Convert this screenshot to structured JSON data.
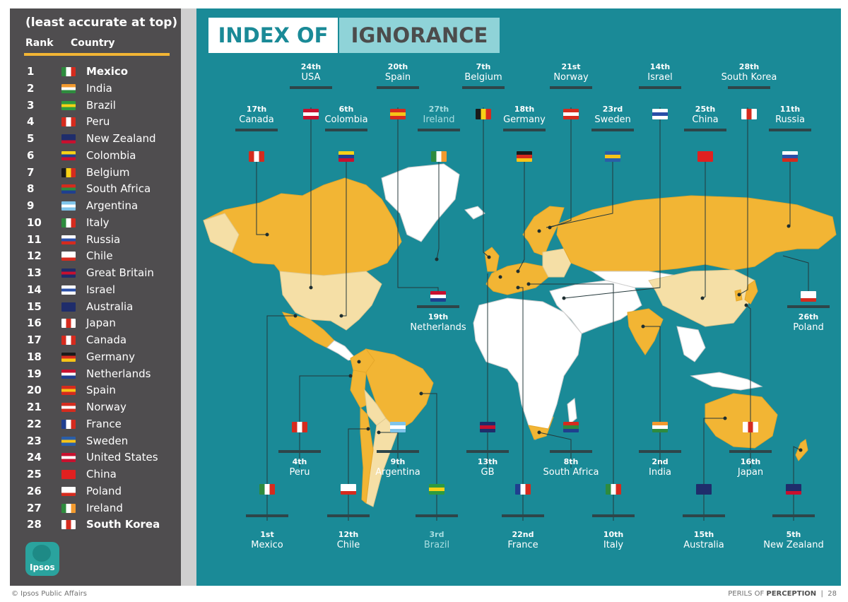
{
  "sidebar": {
    "title": "(least accurate at top)",
    "rank_header": "Rank",
    "country_header": "Country",
    "rows": [
      {
        "rank": "1",
        "country": "Mexico",
        "bold": true,
        "flag": [
          "#2e8b3e",
          "#ffffff",
          "#d52b1e"
        ],
        "flag_dir": "v"
      },
      {
        "rank": "2",
        "country": "India",
        "flag": [
          "#f39a2e",
          "#ffffff",
          "#2e8b3e"
        ],
        "flag_dir": "h"
      },
      {
        "rank": "3",
        "country": "Brazil",
        "flag": [
          "#2e9b3e",
          "#f7d117",
          "#2e9b3e"
        ],
        "flag_dir": "h"
      },
      {
        "rank": "4",
        "country": "Peru",
        "flag": [
          "#d52b1e",
          "#ffffff",
          "#d52b1e"
        ],
        "flag_dir": "v"
      },
      {
        "rank": "5",
        "country": "New Zealand",
        "flag": [
          "#1f2d6b",
          "#1f2d6b",
          "#c8102e"
        ],
        "flag_dir": "h"
      },
      {
        "rank": "6",
        "country": "Colombia",
        "flag": [
          "#f7d117",
          "#1f3f8f",
          "#c8102e"
        ],
        "flag_dir": "h"
      },
      {
        "rank": "7",
        "country": "Belgium",
        "flag": [
          "#1a1a1a",
          "#f7d117",
          "#d52b1e"
        ],
        "flag_dir": "v"
      },
      {
        "rank": "8",
        "country": "South Africa",
        "flag": [
          "#d52b1e",
          "#2e8b3e",
          "#1f3f8f"
        ],
        "flag_dir": "h"
      },
      {
        "rank": "9",
        "country": "Argentina",
        "flag": [
          "#7fc4ea",
          "#ffffff",
          "#7fc4ea"
        ],
        "flag_dir": "h"
      },
      {
        "rank": "10",
        "country": "Italy",
        "flag": [
          "#2e8b3e",
          "#ffffff",
          "#d52b1e"
        ],
        "flag_dir": "v"
      },
      {
        "rank": "11",
        "country": "Russia",
        "flag": [
          "#ffffff",
          "#2a4fa8",
          "#d52b1e"
        ],
        "flag_dir": "h"
      },
      {
        "rank": "12",
        "country": "Chile",
        "flag": [
          "#ffffff",
          "#ffffff",
          "#d52b1e"
        ],
        "flag_dir": "h"
      },
      {
        "rank": "13",
        "country": "Great Britain",
        "flag": [
          "#1f2d6b",
          "#c8102e",
          "#1f2d6b"
        ],
        "flag_dir": "h"
      },
      {
        "rank": "14",
        "country": "Israel",
        "flag": [
          "#ffffff",
          "#2a4fa8",
          "#ffffff"
        ],
        "flag_dir": "h"
      },
      {
        "rank": "15",
        "country": "Australia",
        "flag": [
          "#1f2d6b",
          "#1f2d6b",
          "#1f2d6b"
        ],
        "flag_dir": "h"
      },
      {
        "rank": "16",
        "country": "Japan",
        "flag": [
          "#ffffff",
          "#d52b1e",
          "#ffffff"
        ],
        "flag_dir": "v"
      },
      {
        "rank": "17",
        "country": "Canada",
        "flag": [
          "#d52b1e",
          "#ffffff",
          "#d52b1e"
        ],
        "flag_dir": "v"
      },
      {
        "rank": "18",
        "country": "Germany",
        "flag": [
          "#1a1a1a",
          "#d52b1e",
          "#f7c417"
        ],
        "flag_dir": "h"
      },
      {
        "rank": "19",
        "country": "Netherlands",
        "flag": [
          "#c8102e",
          "#ffffff",
          "#1f3f8f"
        ],
        "flag_dir": "h"
      },
      {
        "rank": "20",
        "country": "Spain",
        "flag": [
          "#d52b1e",
          "#f7c417",
          "#d52b1e"
        ],
        "flag_dir": "h"
      },
      {
        "rank": "21",
        "country": "Norway",
        "flag": [
          "#d52b1e",
          "#ffffff",
          "#d52b1e"
        ],
        "flag_dir": "h"
      },
      {
        "rank": "22",
        "country": "France",
        "flag": [
          "#1f3f8f",
          "#ffffff",
          "#d52b1e"
        ],
        "flag_dir": "v"
      },
      {
        "rank": "23",
        "country": "Sweden",
        "flag": [
          "#2a5ea8",
          "#f7c417",
          "#2a5ea8"
        ],
        "flag_dir": "h"
      },
      {
        "rank": "24",
        "country": "United States",
        "flag": [
          "#c8102e",
          "#ffffff",
          "#c8102e"
        ],
        "flag_dir": "h"
      },
      {
        "rank": "25",
        "country": "China",
        "flag": [
          "#e02020",
          "#e02020",
          "#e02020"
        ],
        "flag_dir": "h"
      },
      {
        "rank": "26",
        "country": "Poland",
        "flag": [
          "#ffffff",
          "#ffffff",
          "#d52b1e"
        ],
        "flag_dir": "h"
      },
      {
        "rank": "27",
        "country": "Ireland",
        "flag": [
          "#2e8b3e",
          "#ffffff",
          "#f39a2e"
        ],
        "flag_dir": "v"
      },
      {
        "rank": "28",
        "country": "South Korea",
        "bold": true,
        "flag": [
          "#ffffff",
          "#d52b1e",
          "#ffffff"
        ],
        "flag_dir": "v"
      }
    ],
    "logo_text": "Ipsos"
  },
  "map": {
    "title_part1": "INDEX OF",
    "title_part2": "IGNORANCE",
    "colors": {
      "ocean": "#1a8a97",
      "highlight": "#f2b534",
      "light": "#f5dfa6",
      "other": "#ffffff",
      "border": "#cfcfcf"
    },
    "labels": {
      "usa": {
        "rank": "24th",
        "name": "USA"
      },
      "spain": {
        "rank": "20th",
        "name": "Spain"
      },
      "belgium": {
        "rank": "7th",
        "name": "Belgium"
      },
      "norway": {
        "rank": "21st",
        "name": "Norway"
      },
      "israel": {
        "rank": "14th",
        "name": "Israel"
      },
      "south_korea": {
        "rank": "28th",
        "name": "South Korea"
      },
      "canada": {
        "rank": "17th",
        "name": "Canada"
      },
      "colombia": {
        "rank": "6th",
        "name": "Colombia"
      },
      "ireland": {
        "rank": "27th",
        "name": "Ireland"
      },
      "germany": {
        "rank": "18th",
        "name": "Germany"
      },
      "sweden": {
        "rank": "23rd",
        "name": "Sweden"
      },
      "china": {
        "rank": "25th",
        "name": "China"
      },
      "russia": {
        "rank": "11th",
        "name": "Russia"
      },
      "netherlands": {
        "rank": "19th",
        "name": "Netherlands"
      },
      "poland": {
        "rank": "26th",
        "name": "Poland"
      },
      "peru": {
        "rank": "4th",
        "name": "Peru"
      },
      "argentina": {
        "rank": "9th",
        "name": "Argentina"
      },
      "gb": {
        "rank": "13th",
        "name": "GB"
      },
      "south_africa": {
        "rank": "8th",
        "name": "South Africa"
      },
      "india": {
        "rank": "2nd",
        "name": "India"
      },
      "japan": {
        "rank": "16th",
        "name": "Japan"
      },
      "mexico": {
        "rank": "1st",
        "name": "Mexico"
      },
      "chile": {
        "rank": "12th",
        "name": "Chile"
      },
      "brazil": {
        "rank": "3rd",
        "name": "Brazil"
      },
      "france": {
        "rank": "22nd",
        "name": "France"
      },
      "italy": {
        "rank": "10th",
        "name": "Italy"
      },
      "australia": {
        "rank": "15th",
        "name": "Australia"
      },
      "new_zealand": {
        "rank": "5th",
        "name": "New Zealand"
      }
    }
  },
  "footer": {
    "left": "© Ipsos Public Affairs",
    "right_prefix": "PERILS OF ",
    "right_bold": "PERCEPTION",
    "separator": "|",
    "page_number": "28"
  }
}
